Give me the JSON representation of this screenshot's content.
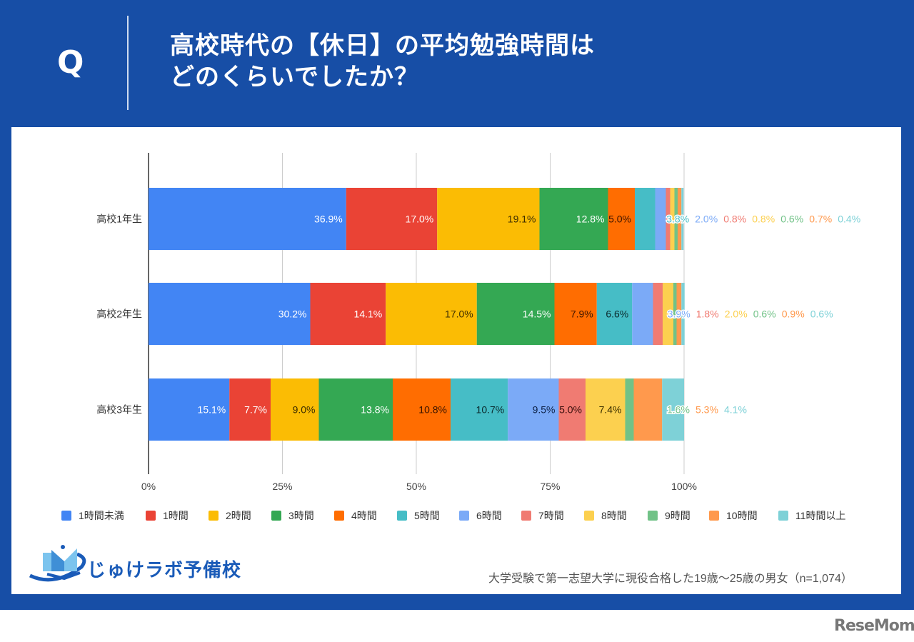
{
  "header": {
    "q_label": "Q",
    "title_line1": "高校時代の【休日】の平均勉強時間は",
    "title_line2": "どのくらいでしたか？"
  },
  "logo": {
    "name": "じゅけラボ予備校"
  },
  "footnote": "大学受験で第一志望大学に現役合格した19歳～25歳の男女（n=1,074）",
  "watermark": "ReseMom",
  "chart_data": {
    "type": "bar",
    "orientation": "horizontal",
    "stacked": true,
    "percent": true,
    "title": "高校時代の【休日】の平均勉強時間はどのくらいでしたか？",
    "categories": [
      "高校1年生",
      "高校2年生",
      "高校3年生"
    ],
    "xlim": [
      0,
      100
    ],
    "xticks": [
      "0%",
      "25%",
      "50%",
      "75%",
      "100%"
    ],
    "xtick_values": [
      0,
      25,
      50,
      75,
      100
    ],
    "grid": true,
    "legend_position": "bottom",
    "series": [
      {
        "name": "1時間未満",
        "color": "#4285f4",
        "values": [
          36.9,
          30.2,
          15.1
        ]
      },
      {
        "name": "1時間",
        "color": "#ea4335",
        "values": [
          17.0,
          14.1,
          7.7
        ]
      },
      {
        "name": "2時間",
        "color": "#fbbc04",
        "values": [
          19.1,
          17.0,
          9.0
        ]
      },
      {
        "name": "3時間",
        "color": "#34a853",
        "values": [
          12.8,
          14.5,
          13.8
        ]
      },
      {
        "name": "4時間",
        "color": "#ff6d01",
        "values": [
          5.0,
          7.9,
          10.8
        ]
      },
      {
        "name": "5時間",
        "color": "#46bdc6",
        "values": [
          3.8,
          6.6,
          10.7
        ]
      },
      {
        "name": "6時間",
        "color": "#7baaf7",
        "values": [
          2.0,
          3.9,
          9.5
        ]
      },
      {
        "name": "7時間",
        "color": "#f07b72",
        "values": [
          0.8,
          1.8,
          5.0
        ]
      },
      {
        "name": "8時間",
        "color": "#fcd04f",
        "values": [
          0.8,
          2.0,
          7.4
        ]
      },
      {
        "name": "9時間",
        "color": "#71c287",
        "values": [
          0.6,
          0.6,
          1.6
        ]
      },
      {
        "name": "10時間",
        "color": "#ff994d",
        "values": [
          0.7,
          0.9,
          5.3
        ]
      },
      {
        "name": "11時間以上",
        "color": "#7ed1d7",
        "values": [
          0.4,
          0.6,
          4.1
        ]
      }
    ],
    "label_text_colors": {
      "1時間未満": "#ffffff",
      "1時間": "#ffffff",
      "2時間": "#3c2c00",
      "3時間": "#ffffff",
      "4時間": "#3c1400",
      "5時間": "#0b2a2d",
      "6時間": "#0d2146",
      "7時間": "#3a0f0c",
      "8時間": "#3c3000"
    },
    "overflow_labels": {
      "高校1年生": [
        "3.8%",
        "2.0%",
        "0.8%",
        "0.8%",
        "0.6%",
        "0.7%",
        "0.4%"
      ],
      "高校2年生": [
        "3.9%",
        "1.8%",
        "2.0%",
        "0.6%",
        "0.9%",
        "0.6%"
      ],
      "高校3年生": [
        "1.6%",
        "5.3%",
        "4.1%"
      ]
    }
  }
}
